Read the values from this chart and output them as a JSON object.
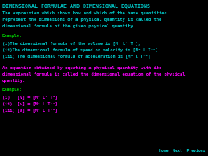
{
  "bg_color": "#000000",
  "title": "DIMENSIONAL FORMULAE AND DIMENSIONAL EQUATIONS",
  "title_color": "#00cccc",
  "body1_color": "#00cccc",
  "body1_lines": [
    "The expression which shows how and which of the base quantities",
    "represent the dimensions of a physical quantity is called the",
    "dimensional formula of the given physical quantity."
  ],
  "example_color": "#00cc00",
  "example_label": "Example:",
  "ex1_color": "#00cccc",
  "ex1_lines": [
    "(i)The dimensional formula of the volume is [M⁰ L³ T⁰],",
    "(ii)The dimensional formula of speed or velocity is [M⁰ L T⁻¹]",
    "(iii) The dimensional formula of acceleration is [M⁰ L T⁻²]"
  ],
  "body2_color": "#ff00ff",
  "body2_lines": [
    "An equation obtained by equating a physical quantity with its",
    "dimensional formula is called the dimensional equation of the physical",
    "quantity."
  ],
  "ex2_color": "#ff00ff",
  "ex2_lines": [
    "(i)   [V] = [M⁰ L³ T⁰]",
    "(ii)  [v] = [M⁰ L T⁻¹]",
    "(iii) [a] = [M⁰ L T⁻²]"
  ],
  "nav_color": "#00cccc",
  "nav_text": "Home  Next  Previous",
  "figw": 2.59,
  "figh": 1.94,
  "dpi": 100
}
